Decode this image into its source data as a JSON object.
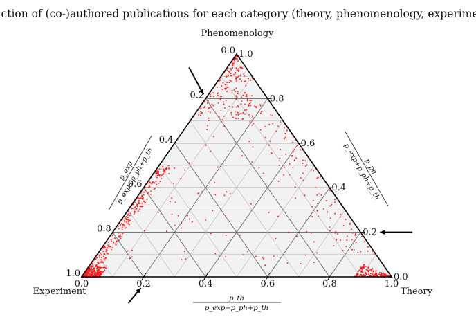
{
  "chart_data": {
    "type": "scatter",
    "subtype": "ternary",
    "title": "Fraction of (co-)authored publications for each category (theory, phenomenology, experiment)",
    "vertex_labels": {
      "top": "Phenomenology",
      "left": "Experiment",
      "right": "Theory"
    },
    "axes": {
      "bottom": {
        "numerator": "p_th",
        "denominator": "p_exp+p_ph+p_th",
        "ticks": [
          "0.0",
          "0.2",
          "0.4",
          "0.6",
          "0.8",
          "1.0"
        ]
      },
      "left": {
        "numerator": "p_exp",
        "denominator": "p_exp+p_ph+p_th",
        "ticks": [
          "0.0",
          "0.2",
          "0.4",
          "0.6",
          "0.8",
          "1.0"
        ]
      },
      "right": {
        "numerator": "p_ph",
        "denominator": "p_exp+p_ph+p_th",
        "ticks": [
          "0.0",
          "0.2",
          "0.4",
          "0.6",
          "0.8",
          "1.0"
        ]
      }
    },
    "grid": true,
    "marker_color": "#ff1a1a",
    "background_fill": "#f2f2f2",
    "arrows": [
      {
        "axis": "left",
        "value": 0.2
      },
      {
        "axis": "bottom",
        "value": 0.2
      },
      {
        "axis": "right",
        "value": 0.2
      }
    ],
    "point_clusters": [
      {
        "region": "experiment corner",
        "ph": [
          0.0,
          0.05
        ],
        "th": [
          0.0,
          0.06
        ],
        "count": 420
      },
      {
        "region": "experiment-phenomenology edge",
        "ph": [
          0.05,
          0.5
        ],
        "th": [
          0.0,
          0.04
        ],
        "count": 260
      },
      {
        "region": "phenomenology corner",
        "ph": [
          0.7,
          1.0
        ],
        "th": [
          0.0,
          0.2
        ],
        "count": 180
      },
      {
        "region": "phenomenology-theory edge",
        "ph": [
          0.1,
          0.9
        ],
        "th": [
          0.1,
          0.9
        ],
        "count": 130
      },
      {
        "region": "theory corner",
        "ph": [
          0.0,
          0.08
        ],
        "th": [
          0.88,
          1.0
        ],
        "count": 170
      },
      {
        "region": "interior",
        "ph": [
          0.05,
          0.8
        ],
        "th": [
          0.05,
          0.8
        ],
        "count": 150
      }
    ]
  }
}
